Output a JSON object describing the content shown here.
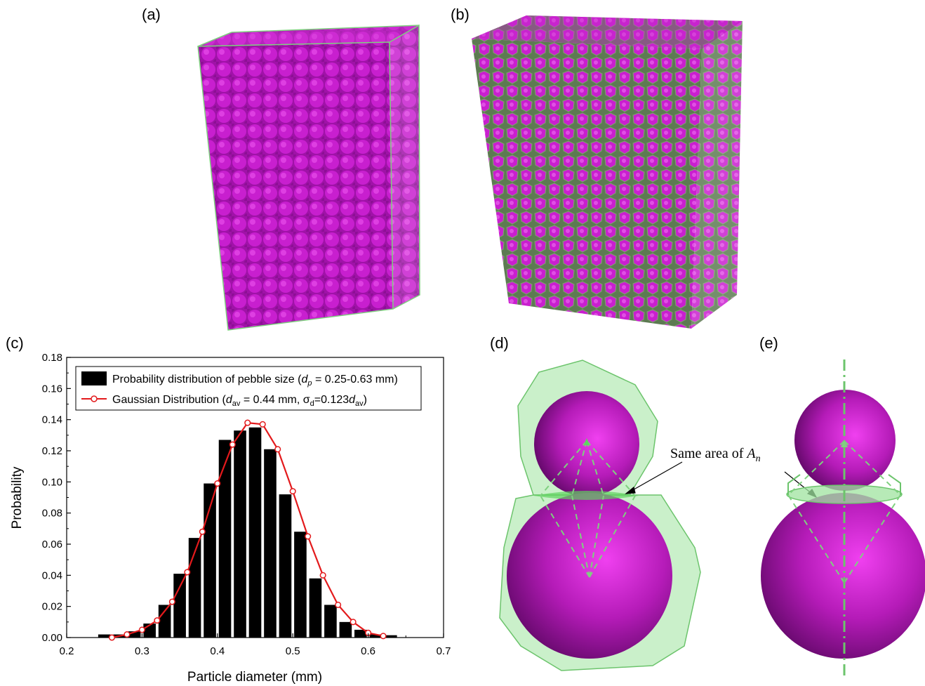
{
  "panels": {
    "a": "(a)",
    "b": "(b)",
    "c": "(c)",
    "d": "(d)",
    "e": "(e)"
  },
  "annotation": {
    "prefix": "Same area of ",
    "symbol": "A",
    "subscript": "n"
  },
  "colors": {
    "sphere": "#cc1fcc",
    "voronoi": "#5fd35f",
    "bar": "#000000",
    "gaussian": "#e31a1c"
  },
  "chart_data": {
    "type": "bar",
    "xlabel": "Particle diameter (mm)",
    "ylabel": "Probability",
    "xlim": [
      0.2,
      0.7
    ],
    "ylim": [
      0,
      0.18
    ],
    "xticks": [
      "0.2",
      "0.3",
      "0.4",
      "0.5",
      "0.6",
      "0.7"
    ],
    "yticks": [
      "0.00",
      "0.02",
      "0.04",
      "0.06",
      "0.08",
      "0.10",
      "0.12",
      "0.14",
      "0.16",
      "0.18"
    ],
    "legend_position": "top-left",
    "legend": {
      "bar": {
        "text": "Probability distribution of pebble size (",
        "var": "d",
        "sub": "p",
        "rest": " = 0.25-0.63 mm)"
      },
      "line": {
        "text": "Gaussian Distribution (",
        "var": "d",
        "sub": "av",
        "mid": " = 0.44 mm, σ",
        "sub2": "d",
        "mid2": "=0.123",
        "var2": "d",
        "sub3": "av",
        "rest": ")"
      }
    },
    "bars": {
      "x": [
        0.25,
        0.27,
        0.29,
        0.31,
        0.33,
        0.35,
        0.37,
        0.39,
        0.41,
        0.43,
        0.45,
        0.47,
        0.49,
        0.51,
        0.53,
        0.55,
        0.57,
        0.59,
        0.61,
        0.63
      ],
      "values": [
        0.002,
        0.002,
        0.004,
        0.009,
        0.021,
        0.041,
        0.064,
        0.099,
        0.127,
        0.133,
        0.135,
        0.121,
        0.092,
        0.068,
        0.038,
        0.021,
        0.01,
        0.005,
        0.002,
        0.0015
      ]
    },
    "series": [
      {
        "name": "Gaussian Distribution",
        "x": [
          0.26,
          0.28,
          0.3,
          0.32,
          0.34,
          0.36,
          0.38,
          0.4,
          0.42,
          0.44,
          0.46,
          0.48,
          0.5,
          0.52,
          0.54,
          0.56,
          0.58,
          0.6,
          0.62
        ],
        "values": [
          0.0,
          0.002,
          0.005,
          0.011,
          0.023,
          0.042,
          0.068,
          0.099,
          0.124,
          0.138,
          0.137,
          0.121,
          0.094,
          0.065,
          0.04,
          0.021,
          0.01,
          0.003,
          0.001
        ]
      }
    ]
  }
}
